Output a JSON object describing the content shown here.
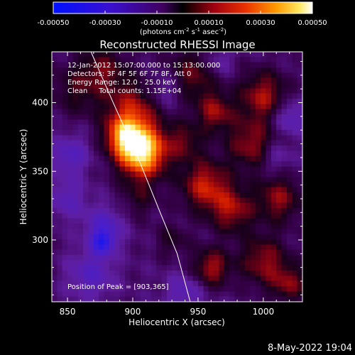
{
  "colorbar": {
    "tick_labels": [
      "-0.00050",
      "-0.00030",
      "-0.00010",
      "0.00010",
      "0.00030",
      "0.00050"
    ],
    "tick_values": [
      -0.0005,
      -0.0003,
      -0.0001,
      0.0001,
      0.0003,
      0.0005
    ],
    "units_parts": [
      "(photons cm",
      "-2",
      " s",
      "-1",
      " asec",
      "-2",
      ")"
    ],
    "range": [
      -0.0005,
      0.0005
    ],
    "colors": {
      "negative_end": "#0010ff",
      "zero": "#000000",
      "mid_positive": "#e02000",
      "positive_end": "#ffffff"
    }
  },
  "chart_data": {
    "type": "heatmap",
    "title": "Reconstructed RHESSI Image",
    "xlabel": "Heliocentric X (arcsec)",
    "ylabel": "Heliocentric Y (arcsec)",
    "xlim": [
      838,
      1030
    ],
    "ylim": [
      255,
      437
    ],
    "x_ticks": [
      850,
      900,
      950,
      1000
    ],
    "y_ticks": [
      300,
      350,
      400
    ],
    "annotations": [
      "12-Jan-2012 15:07:00.000 to 15:13:00.000",
      "Detectors: 3F 4F 5F 6F 7F 8F, Att 0",
      "Energy Range: 12.0 - 25.0 keV",
      "Clean     Total counts: 1.15E+04"
    ],
    "peak_label": "Position of Peak = [903,365]",
    "peak": [
      903,
      365
    ],
    "limb_curve": [
      [
        868,
        437
      ],
      [
        885,
        400
      ],
      [
        904,
        360
      ],
      [
        921,
        320
      ],
      [
        934,
        290
      ],
      [
        944,
        255
      ]
    ],
    "sources": [
      {
        "x": 907,
        "y": 364,
        "sigma": 13,
        "amp": 1.0
      },
      {
        "x": 893,
        "y": 376,
        "sigma": 10,
        "amp": 0.55
      },
      {
        "x": 900,
        "y": 395,
        "sigma": 15,
        "amp": 0.45
      },
      {
        "x": 857,
        "y": 410,
        "sigma": 14,
        "amp": 0.25
      },
      {
        "x": 878,
        "y": 425,
        "sigma": 12,
        "amp": 0.3
      },
      {
        "x": 945,
        "y": 420,
        "sigma": 14,
        "amp": 0.35
      },
      {
        "x": 1000,
        "y": 405,
        "sigma": 13,
        "amp": 0.45
      },
      {
        "x": 963,
        "y": 393,
        "sigma": 10,
        "amp": 0.4
      },
      {
        "x": 990,
        "y": 370,
        "sigma": 13,
        "amp": 0.4
      },
      {
        "x": 955,
        "y": 340,
        "sigma": 13,
        "amp": 0.5
      },
      {
        "x": 976,
        "y": 322,
        "sigma": 12,
        "amp": 0.42
      },
      {
        "x": 1012,
        "y": 330,
        "sigma": 12,
        "amp": 0.4
      },
      {
        "x": 940,
        "y": 372,
        "sigma": 10,
        "amp": 0.3
      },
      {
        "x": 905,
        "y": 330,
        "sigma": 10,
        "amp": 0.2
      },
      {
        "x": 1000,
        "y": 285,
        "sigma": 13,
        "amp": 0.4
      },
      {
        "x": 960,
        "y": 280,
        "sigma": 10,
        "amp": 0.45
      },
      {
        "x": 1020,
        "y": 268,
        "sigma": 10,
        "amp": 0.35
      },
      {
        "x": 930,
        "y": 300,
        "sigma": 9,
        "amp": 0.2
      },
      {
        "x": 878,
        "y": 310,
        "sigma": 10,
        "amp": -0.35
      },
      {
        "x": 877,
        "y": 298,
        "sigma": 6,
        "amp": -0.5
      },
      {
        "x": 852,
        "y": 362,
        "sigma": 10,
        "amp": -0.3
      },
      {
        "x": 868,
        "y": 275,
        "sigma": 12,
        "amp": -0.3
      },
      {
        "x": 925,
        "y": 410,
        "sigma": 10,
        "amp": -0.25
      },
      {
        "x": 1020,
        "y": 390,
        "sigma": 9,
        "amp": -0.3
      },
      {
        "x": 1010,
        "y": 360,
        "sigma": 8,
        "amp": -0.2
      },
      {
        "x": 940,
        "y": 262,
        "sigma": 10,
        "amp": -0.25
      },
      {
        "x": 850,
        "y": 330,
        "sigma": 10,
        "amp": -0.25
      },
      {
        "x": 965,
        "y": 430,
        "sigma": 8,
        "amp": -0.2
      }
    ]
  },
  "footer": {
    "timestamp": "8-May-2022 19:04"
  }
}
